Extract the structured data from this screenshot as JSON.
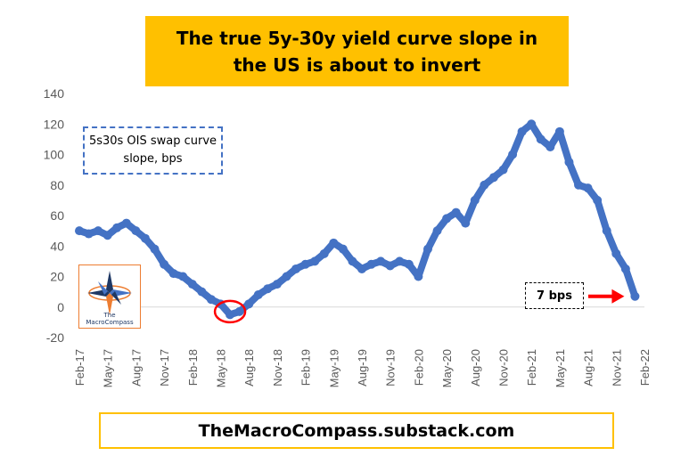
{
  "title": "The true 5y-30y yield curve slope in the US is about to invert",
  "legend_label": "5s30s OIS swap curve slope, bps",
  "callout_label": "7 bps",
  "footer": "TheMacroCompass.substack.com",
  "logo": {
    "line1": "The",
    "line2": "MacroCompass"
  },
  "colors": {
    "series": "#4472C4",
    "title_bg": "#FFC000",
    "arrow": "#FF0000",
    "circle": "#FF0000"
  },
  "chart_data": {
    "type": "scatter",
    "title": "The true 5y-30y yield curve slope in the US is about to invert",
    "ylim": [
      -20,
      140
    ],
    "y_ticks": [
      -20,
      0,
      20,
      40,
      60,
      80,
      100,
      120,
      140
    ],
    "x_tick_labels": [
      "Feb-17",
      "May-17",
      "Aug-17",
      "Nov-17",
      "Feb-18",
      "May-18",
      "Aug-18",
      "Nov-18",
      "Feb-19",
      "May-19",
      "Aug-19",
      "Nov-19",
      "Feb-20",
      "May-20",
      "Aug-20",
      "Nov-20",
      "Feb-21",
      "May-21",
      "Aug-21",
      "Nov-21",
      "Feb-22"
    ],
    "grid": false,
    "series": [
      {
        "name": "5s30s OIS swap curve slope, bps",
        "x": [
          "2017-02",
          "2017-03",
          "2017-04",
          "2017-05",
          "2017-06",
          "2017-07",
          "2017-08",
          "2017-09",
          "2017-10",
          "2017-11",
          "2017-12",
          "2018-01",
          "2018-02",
          "2018-03",
          "2018-04",
          "2018-05",
          "2018-06",
          "2018-07",
          "2018-08",
          "2018-09",
          "2018-10",
          "2018-11",
          "2018-12",
          "2019-01",
          "2019-02",
          "2019-03",
          "2019-04",
          "2019-05",
          "2019-06",
          "2019-07",
          "2019-08",
          "2019-09",
          "2019-10",
          "2019-11",
          "2019-12",
          "2020-01",
          "2020-02",
          "2020-03",
          "2020-04",
          "2020-05",
          "2020-06",
          "2020-07",
          "2020-08",
          "2020-09",
          "2020-10",
          "2020-11",
          "2020-12",
          "2021-01",
          "2021-02",
          "2021-03",
          "2021-04",
          "2021-05",
          "2021-06",
          "2021-07",
          "2021-08",
          "2021-09",
          "2021-10",
          "2021-11",
          "2021-12",
          "2022-01"
        ],
        "y": [
          50,
          48,
          50,
          47,
          52,
          55,
          50,
          45,
          38,
          28,
          22,
          20,
          15,
          10,
          5,
          2,
          -5,
          -3,
          2,
          8,
          12,
          15,
          20,
          25,
          28,
          30,
          35,
          42,
          38,
          30,
          25,
          28,
          30,
          27,
          30,
          28,
          20,
          38,
          50,
          58,
          62,
          55,
          70,
          80,
          85,
          90,
          100,
          115,
          120,
          110,
          105,
          115,
          95,
          80,
          78,
          70,
          50,
          35,
          25,
          7
        ]
      }
    ],
    "annotations": [
      {
        "text": "7 bps",
        "type": "callout-arrow",
        "target_x": "2022-01",
        "target_y": 7
      },
      {
        "type": "circle",
        "target_x": "2018-06",
        "target_y": -3
      }
    ]
  }
}
